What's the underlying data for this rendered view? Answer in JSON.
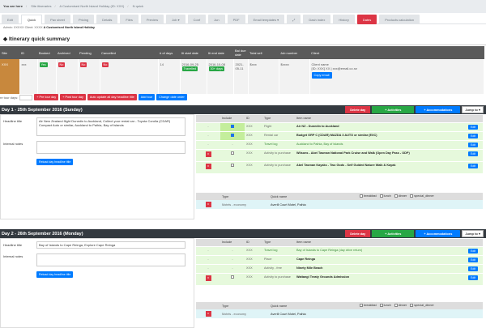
{
  "breadcrumb": {
    "prefix": "You are here",
    "items": [
      "Site itineraries",
      "A Customised North Island Holiday (ID: XXX)",
      "N quick"
    ]
  },
  "tabs": [
    {
      "label": "Edit"
    },
    {
      "label": "Quick",
      "active": true
    },
    {
      "label": "Pax sheet"
    },
    {
      "label": "Pricing"
    },
    {
      "label": "Details"
    },
    {
      "label": "Files"
    },
    {
      "label": "Preview"
    },
    {
      "label": "Job ▾"
    },
    {
      "label": "Conf"
    },
    {
      "label": "Jun"
    },
    {
      "label": "PDF"
    },
    {
      "label": "Email templates ▾"
    },
    {
      "label": "⤢"
    },
    {
      "label": "Dash index"
    },
    {
      "label": "History"
    },
    {
      "label": "Dates",
      "red": true
    },
    {
      "label": "Products calculation"
    }
  ],
  "subline": {
    "text": "Admin: XXXXX  Client: XXXX ",
    "bold": "A Customised North Island Holiday"
  },
  "quick_summary": {
    "title": "Itinerary quick summary",
    "headers": [
      "Site",
      "ID",
      "Booked",
      "Archived",
      "Pending",
      "Cancelled",
      "# of days",
      "Iti start date",
      "Iti end date",
      "Bal due date",
      "Total sell",
      "Job number",
      "Client"
    ],
    "row": {
      "site": "XXX",
      "id": "xxx",
      "booked": "Yes",
      "archived": "No",
      "pending": "No",
      "cancelled": "No",
      "days": "14",
      "start": "2016-09-25",
      "start_badge": "Travelled",
      "end": "2016-10-08",
      "end_badge": "30+ days",
      "bal_due": "2021-05-11",
      "total_sell": "$xxx",
      "job_number": "$xxxx",
      "client_name": "Client name",
      "client_detail": "[ID: XXX] XX | xxx@email.co.nz",
      "copy_email": "Copy email"
    }
  },
  "toolbar": {
    "label": "re tour days:",
    "pre": "+ Pre tour day",
    "post": "+ Post tour day",
    "auto": "Auto update all day headline title",
    "add_tour": "Add tour",
    "change_order": "Change date order"
  },
  "days": [
    {
      "title": "Day 1 - 25th September 2016 (Sunday)",
      "delete": "Delete day",
      "activities": "+ Activities",
      "accommodations": "+ Accommodations",
      "jump": "Jump to ▾",
      "headline_label": "Headline title",
      "headline": "Air New Zealand flight Dunedin to Auckland, Collect your rental car  - Toyota Corolla (CDAR) Compact Auto or similar, Auckland to Paihia, Bay of Islands",
      "notes_label": "Internal notes",
      "notes": "",
      "reload": "Reload day headline title",
      "item_headers": [
        "",
        "Include",
        "ID",
        "Type",
        "Item name",
        ""
      ],
      "items": [
        {
          "x": false,
          "dash": "-",
          "include": "checked",
          "id": "XXX",
          "type": "Flight",
          "name": "Air NZ - Dunedin to Auckland",
          "edit": "Edit"
        },
        {
          "x": false,
          "dash": "-",
          "include": "checked",
          "id": "XXX",
          "type": "Rental car",
          "name": "Budget GRP C (CDAR) MAZDA 3 AUTO or similar (EXC)",
          "edit": "Edit"
        },
        {
          "x": false,
          "dash": "-",
          "include": "-",
          "id": "XXX",
          "type": "Travel log",
          "name": "Auckland to Paihia, Bay of Islands",
          "edit": "Edit",
          "travel": true
        },
        {
          "x": true,
          "dash": "x",
          "include": "unchecked",
          "id": "XXX",
          "type": "Activity to purchase",
          "name": "Wilsons - Abel Tasman National Park Cruise and Walk (Open Day Pass - ODP)",
          "edit": "Edit"
        },
        {
          "x": true,
          "dash": "x",
          "include": "unchecked",
          "id": "XXX",
          "type": "Activity to purchase",
          "name": "Abel Tasman Kayaks - Two Gods - Self Guided Nature Walk & Kayak",
          "edit": "Edit"
        }
      ],
      "acc_headers": [
        "",
        "Type",
        "Quick name"
      ],
      "meals": [
        "breakfast",
        "lunch",
        "dinner",
        "special_dinner"
      ],
      "acc": {
        "type": "Motels - economy",
        "name": "Averill Court Motel, Paihia"
      }
    },
    {
      "title": "Day 2 - 26th September 2016 (Monday)",
      "delete": "Delete day",
      "activities": "+ Activities",
      "accommodations": "+ Accommodations",
      "jump": "Jump to ▾",
      "headline_label": "Headline title",
      "headline": "Bay of Islands to Cape Reinga, Explore Cape Reinga",
      "notes_label": "Internal notes",
      "notes": "",
      "reload": "Reload day headline title",
      "item_headers": [
        "",
        "Include",
        "ID",
        "Type",
        "Item name",
        ""
      ],
      "items": [
        {
          "x": false,
          "dash": "-",
          "include": "-",
          "id": "XXX",
          "type": "Travel log",
          "name": "Bay of Islands to Cape Reinga (day drive return)",
          "edit": "Edit",
          "travel": true
        },
        {
          "x": false,
          "dash": "-",
          "include": "-",
          "id": "XXX",
          "type": "Place",
          "name": "Cape Reinga",
          "edit": "Edit"
        },
        {
          "x": false,
          "dash": "-",
          "include": "-",
          "id": "XXX",
          "type": "Activity - free",
          "name": "Ninety Mile Beach",
          "edit": "Edit"
        },
        {
          "x": true,
          "dash": "x",
          "include": "unchecked",
          "id": "XXX",
          "type": "Activity to purchase",
          "name": "Waitangi Treaty Grounds Admission",
          "edit": "Edit"
        }
      ],
      "acc_headers": [
        "",
        "Type",
        "Quick name"
      ],
      "meals": [
        "breakfast",
        "lunch",
        "dinner",
        "special_dinner"
      ],
      "acc": {
        "type": "Motels - economy",
        "name": "Averill Court Motel, Paihia"
      }
    }
  ]
}
